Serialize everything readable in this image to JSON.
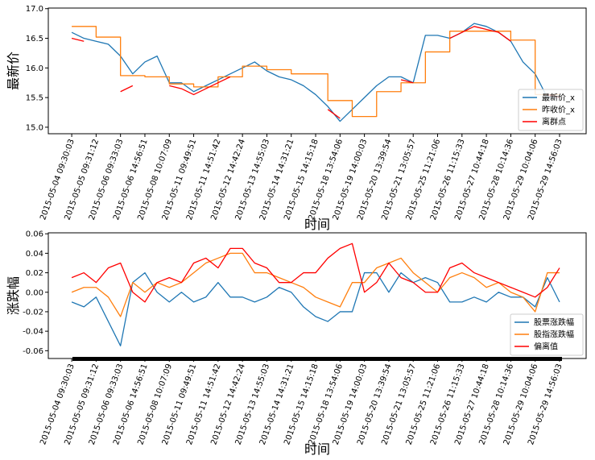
{
  "chart_data": [
    {
      "type": "line",
      "ylabel": "最新价",
      "xlabel": "时间",
      "legend": "lower right",
      "xlim": [
        -0.96,
        21.09
      ],
      "ylim": [
        14.89,
        17.01
      ],
      "yticks": [
        {
          "value": 15,
          "label": "15.0"
        },
        15.5,
        {
          "value": 16,
          "label": "16.0"
        },
        16.5,
        {
          "value": 17,
          "label": "17.0"
        }
      ],
      "xticks": [
        {
          "value": 0,
          "label": "2015-05-04 09:30:03"
        },
        {
          "value": 1,
          "label": "2015-05-05 09:31:12"
        },
        {
          "value": 2,
          "label": "2015-05-06 09:33:03"
        },
        {
          "value": 3,
          "label": "2015-05-06 14:56:51"
        },
        {
          "value": 4,
          "label": "2015-05-08 10:07:09"
        },
        {
          "value": 5,
          "label": "2015-05-11 09:49:51"
        },
        {
          "value": 6,
          "label": "2015-05-11 14:51:42"
        },
        {
          "value": 7,
          "label": "2015-05-12 14:42:24"
        },
        {
          "value": 8,
          "label": "2015-05-13 14:55:03"
        },
        {
          "value": 9,
          "label": "2015-05-14 14:31:21"
        },
        {
          "value": 10,
          "label": "2015-05-15 14:15:18"
        },
        {
          "value": 11,
          "label": "2015-05-18 13:54:06"
        },
        {
          "value": 12,
          "label": "2015-05-19 14:00:03"
        },
        {
          "value": 13,
          "label": "2015-05-20 13:39:54"
        },
        {
          "value": 14,
          "label": "2015-05-21 13:05:57"
        },
        {
          "value": 15,
          "label": "2015-05-25 11:21:06"
        },
        {
          "value": 16,
          "label": "2015-05-26 11:15:33"
        },
        {
          "value": 17,
          "label": "2015-05-27 10:44:18"
        },
        {
          "value": 18,
          "label": "2015-05-28 10:14:36"
        },
        {
          "value": 19,
          "label": "2015-05-29 10:04:06"
        },
        {
          "value": 20,
          "label": "2015-05-29 14:56:03"
        }
      ],
      "x": [
        0,
        0.5,
        1,
        1.5,
        2,
        2.5,
        3,
        3.5,
        4,
        4.5,
        5,
        5.5,
        6,
        6.5,
        7,
        7.5,
        8,
        8.5,
        9,
        9.5,
        10,
        10.5,
        11,
        11.5,
        12,
        12.5,
        13,
        13.5,
        14,
        14.5,
        15,
        15.5,
        16,
        16.5,
        17,
        17.5,
        18,
        18.5,
        19,
        19.5,
        20
      ],
      "series": [
        {
          "name": "最新价_x",
          "color": "#1f77b4",
          "drawstyle": "default",
          "values": [
            16.6,
            16.5,
            16.45,
            16.4,
            16.2,
            15.9,
            16.1,
            16.2,
            15.75,
            15.75,
            15.6,
            15.7,
            15.8,
            15.9,
            16.0,
            16.1,
            15.95,
            15.85,
            15.8,
            15.7,
            15.55,
            15.35,
            15.1,
            15.3,
            15.5,
            15.7,
            15.85,
            15.85,
            15.75,
            16.55,
            16.55,
            16.5,
            16.6,
            16.75,
            16.7,
            16.6,
            16.45,
            16.1,
            15.9,
            15.5,
            15.5
          ]
        },
        {
          "name": "昨收价_x",
          "color": "#ff7f0e",
          "drawstyle": "steps-post",
          "values": [
            16.7,
            16.7,
            16.52,
            16.52,
            15.87,
            15.87,
            15.85,
            15.85,
            15.73,
            15.73,
            15.68,
            15.68,
            15.85,
            15.85,
            16.03,
            16.03,
            15.97,
            15.97,
            15.9,
            15.9,
            15.9,
            15.45,
            15.45,
            15.18,
            15.18,
            15.6,
            15.6,
            15.75,
            15.75,
            16.27,
            16.27,
            16.62,
            16.62,
            16.62,
            16.62,
            16.62,
            16.47,
            16.47,
            15.55,
            15.55,
            15.55
          ]
        },
        {
          "name": "离群点",
          "color": "#ff0000",
          "drawstyle": "default",
          "values": [
            16.5,
            16.45,
            null,
            null,
            15.6,
            15.7,
            null,
            null,
            15.7,
            15.65,
            15.55,
            15.65,
            15.75,
            15.85,
            null,
            null,
            null,
            null,
            null,
            null,
            null,
            15.3,
            15.15,
            null,
            null,
            null,
            null,
            15.8,
            15.75,
            null,
            null,
            16.5,
            16.6,
            16.7,
            16.65,
            16.6,
            16.45,
            null,
            null,
            15.55,
            15.5
          ]
        }
      ]
    },
    {
      "type": "line",
      "ylabel": "涨跌幅",
      "xlabel": "时间",
      "legend": "lower right",
      "xlim": [
        -0.96,
        21.09
      ],
      "ylim": [
        -0.068,
        0.061
      ],
      "yticks": [
        -0.06,
        -0.04,
        -0.02,
        {
          "value": 0,
          "label": "0.00"
        },
        0.02,
        0.04,
        0.06
      ],
      "xticks": [
        {
          "value": 0,
          "label": "2015-05-04 09:30:03"
        },
        {
          "value": 1,
          "label": "2015-05-05 09:31:12"
        },
        {
          "value": 2,
          "label": "2015-05-06 09:33:03"
        },
        {
          "value": 3,
          "label": "2015-05-06 14:56:51"
        },
        {
          "value": 4,
          "label": "2015-05-08 10:07:09"
        },
        {
          "value": 5,
          "label": "2015-05-11 09:49:51"
        },
        {
          "value": 6,
          "label": "2015-05-11 14:51:42"
        },
        {
          "value": 7,
          "label": "2015-05-12 14:42:24"
        },
        {
          "value": 8,
          "label": "2015-05-13 14:55:03"
        },
        {
          "value": 9,
          "label": "2015-05-14 14:31:21"
        },
        {
          "value": 10,
          "label": "2015-05-15 14:15:18"
        },
        {
          "value": 11,
          "label": "2015-05-18 13:54:06"
        },
        {
          "value": 12,
          "label": "2015-05-19 14:00:03"
        },
        {
          "value": 13,
          "label": "2015-05-20 13:39:54"
        },
        {
          "value": 14,
          "label": "2015-05-21 13:05:57"
        },
        {
          "value": 15,
          "label": "2015-05-25 11:21:06"
        },
        {
          "value": 16,
          "label": "2015-05-26 11:15:33"
        },
        {
          "value": 17,
          "label": "2015-05-27 10:44:18"
        },
        {
          "value": 18,
          "label": "2015-05-28 10:14:36"
        },
        {
          "value": 19,
          "label": "2015-05-29 10:04:06"
        },
        {
          "value": 20,
          "label": "2015-05-29 14:56:03"
        }
      ],
      "x": [
        0,
        0.5,
        1,
        1.5,
        2,
        2.5,
        3,
        3.5,
        4,
        4.5,
        5,
        5.5,
        6,
        6.5,
        7,
        7.5,
        8,
        8.5,
        9,
        9.5,
        10,
        10.5,
        11,
        11.5,
        12,
        12.5,
        13,
        13.5,
        14,
        14.5,
        15,
        15.5,
        16,
        16.5,
        17,
        17.5,
        18,
        18.5,
        19,
        19.5,
        20
      ],
      "series": [
        {
          "name": "股票涨跌幅",
          "color": "#1f77b4",
          "drawstyle": "default",
          "values": [
            -0.01,
            -0.015,
            -0.005,
            -0.03,
            -0.055,
            0.01,
            0.02,
            0.0,
            -0.01,
            0.0,
            -0.01,
            -0.005,
            0.01,
            -0.005,
            -0.005,
            -0.01,
            -0.005,
            0.005,
            0.0,
            -0.015,
            -0.025,
            -0.03,
            -0.02,
            -0.02,
            0.02,
            0.02,
            0.0,
            0.02,
            0.01,
            0.015,
            0.01,
            -0.01,
            -0.01,
            -0.005,
            -0.01,
            0.0,
            -0.005,
            -0.005,
            -0.015,
            0.015,
            -0.01
          ]
        },
        {
          "name": "股指涨跌幅",
          "color": "#ff7f0e",
          "drawstyle": "default",
          "values": [
            0.0,
            0.005,
            0.005,
            -0.005,
            -0.025,
            0.01,
            0.0,
            0.01,
            0.005,
            0.01,
            0.02,
            0.03,
            0.035,
            0.04,
            0.04,
            0.02,
            0.02,
            0.015,
            0.01,
            0.005,
            -0.005,
            -0.01,
            -0.015,
            0.01,
            0.01,
            0.025,
            0.03,
            0.035,
            0.02,
            0.01,
            0.0,
            0.015,
            0.02,
            0.015,
            0.005,
            0.01,
            0.0,
            -0.005,
            -0.02,
            0.02,
            0.02
          ]
        },
        {
          "name": "偏离值",
          "color": "#ff0000",
          "drawstyle": "default",
          "values": [
            0.015,
            0.02,
            0.01,
            0.025,
            0.03,
            0.0,
            -0.01,
            0.01,
            0.015,
            0.01,
            0.03,
            0.035,
            0.025,
            0.045,
            0.045,
            0.03,
            0.025,
            0.01,
            0.01,
            0.02,
            0.02,
            0.035,
            0.045,
            0.05,
            0.0,
            0.01,
            0.03,
            0.015,
            0.01,
            0.0,
            0.0,
            0.025,
            0.03,
            0.02,
            0.015,
            0.01,
            0.005,
            0.0,
            -0.005,
            0.005,
            0.025
          ]
        }
      ]
    }
  ]
}
